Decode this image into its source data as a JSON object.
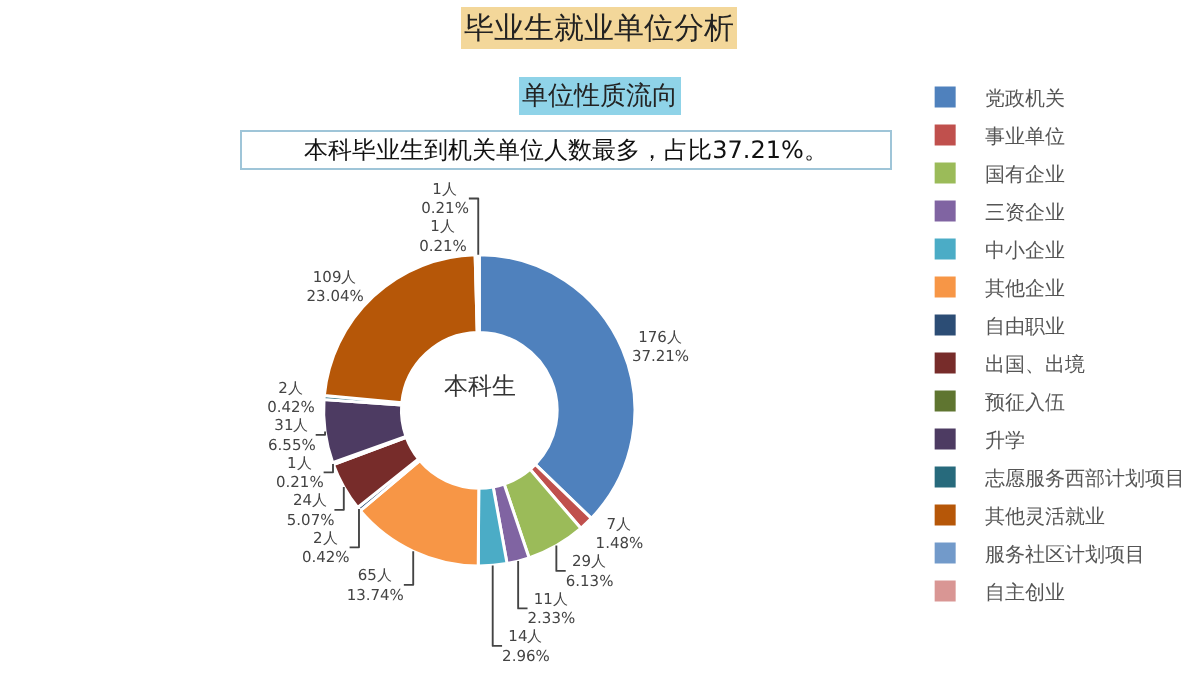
{
  "chart_data": {
    "type": "donut",
    "title": "毕业生就业单位分析",
    "subtitle": "单位性质流向",
    "annotations": [
      "本科毕业生到机关单位人数最多，占比37.21%。",
      "本科生"
    ],
    "categories": [
      "党政机关",
      "事业单位",
      "国有企业",
      "三资企业",
      "中小企业",
      "其他企业",
      "自由职业",
      "出国、出境",
      "预征入伍",
      "升学",
      "志愿服务西部计划项目",
      "其他灵活就业",
      "服务社区计划项目",
      "自主创业"
    ],
    "values": [
      176,
      7,
      29,
      11,
      14,
      65,
      2,
      24,
      1,
      31,
      2,
      109,
      1,
      1
    ],
    "value_labels": [
      "176人\n37.21%",
      "7人\n1.48%",
      "29人\n6.13%",
      "11人\n2.33%",
      "14人\n2.96%",
      "65人\n13.74%",
      "2人\n0.42%",
      "24人\n5.07%",
      "1人\n0.21%",
      "31人\n6.55%",
      "2人\n0.42%",
      "109人\n23.04%",
      "1人\n0.21%",
      "1人\n0.21%"
    ],
    "colors": [
      "#4f81bd",
      "#c0504d",
      "#9bbb59",
      "#8064a2",
      "#4bacc6",
      "#f79646",
      "#2c4d75",
      "#772c2a",
      "#5f7530",
      "#4d3b62",
      "#276a7c",
      "#b65708",
      "#729aca",
      "#d99694"
    ],
    "legend": "right"
  }
}
